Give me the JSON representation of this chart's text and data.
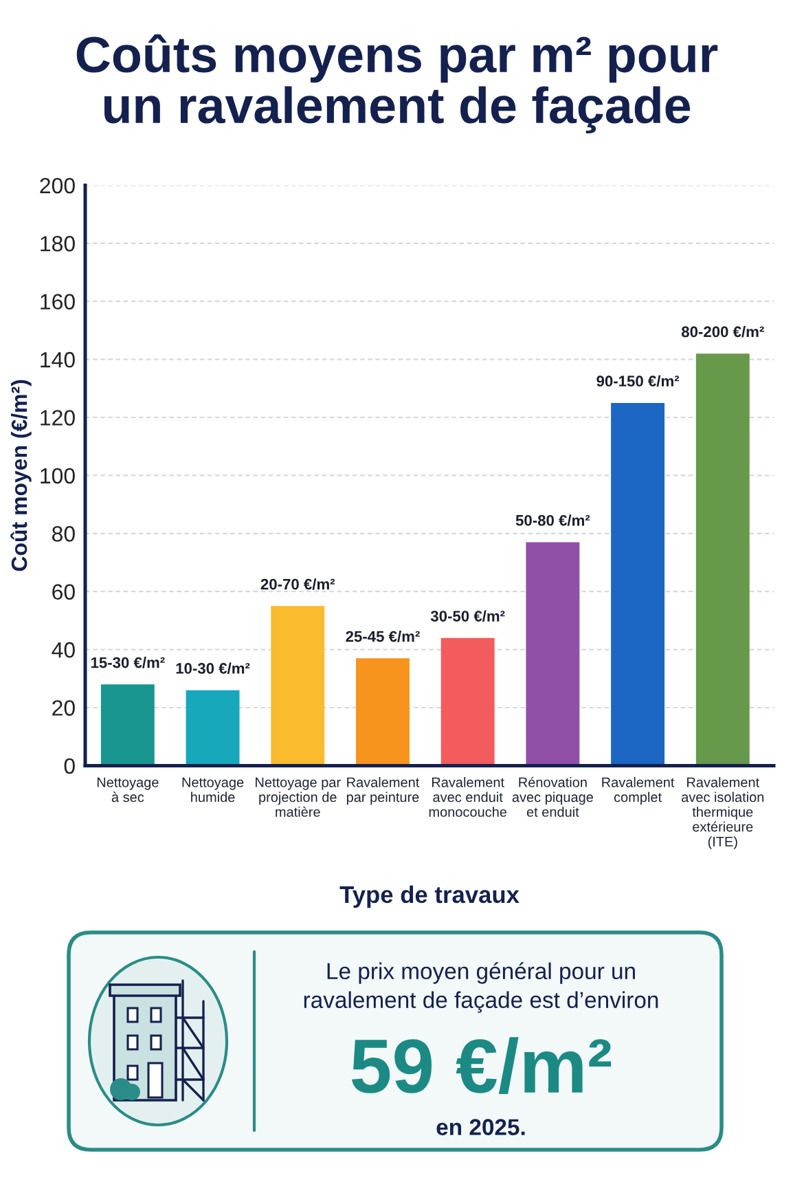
{
  "chart_data": {
    "type": "bar",
    "title": "Coûts moyens par m² pour\nun ravalement de façade",
    "xlabel": "Type de travaux",
    "ylabel": "Coût moyen (€/m²)",
    "categories": [
      "Nettoyage\nà sec",
      "Nettoyage\nhumide",
      "Nettoyage par\nprojection de\nmatière",
      "Ravalement\npar peinture",
      "Ravalement\navec enduit\nmonocouche",
      "Rénovation\navec piquage\net enduit",
      "Ravalement\ncomplet",
      "Ravalement\navec isolation\nthermique\nextérieure\n(ITE)"
    ],
    "values": [
      28,
      26,
      55,
      37,
      44,
      77,
      125,
      142
    ],
    "colors": [
      "#1a9690",
      "#17a8bc",
      "#fbbb2f",
      "#f7941d",
      "#f25c5c",
      "#9150a8",
      "#1c67c4",
      "#67994a"
    ],
    "value_labels": [
      "15-30 €/m²",
      "10-30 €/m²",
      "20-70 €/m²",
      "25-45 €/m²",
      "30-50 €/m²",
      "50-80 €/m²",
      "90-150 €/m²",
      "80-200 €/m²"
    ],
    "ylim": [
      0,
      200
    ],
    "yticks": [
      0,
      20,
      40,
      60,
      80,
      100,
      120,
      140,
      160,
      180,
      200
    ],
    "grid": "y",
    "annotations": [
      "Le prix moyen général pour un\nravalement de façade est d’environ",
      "59 €/m²",
      "en 2025."
    ]
  }
}
